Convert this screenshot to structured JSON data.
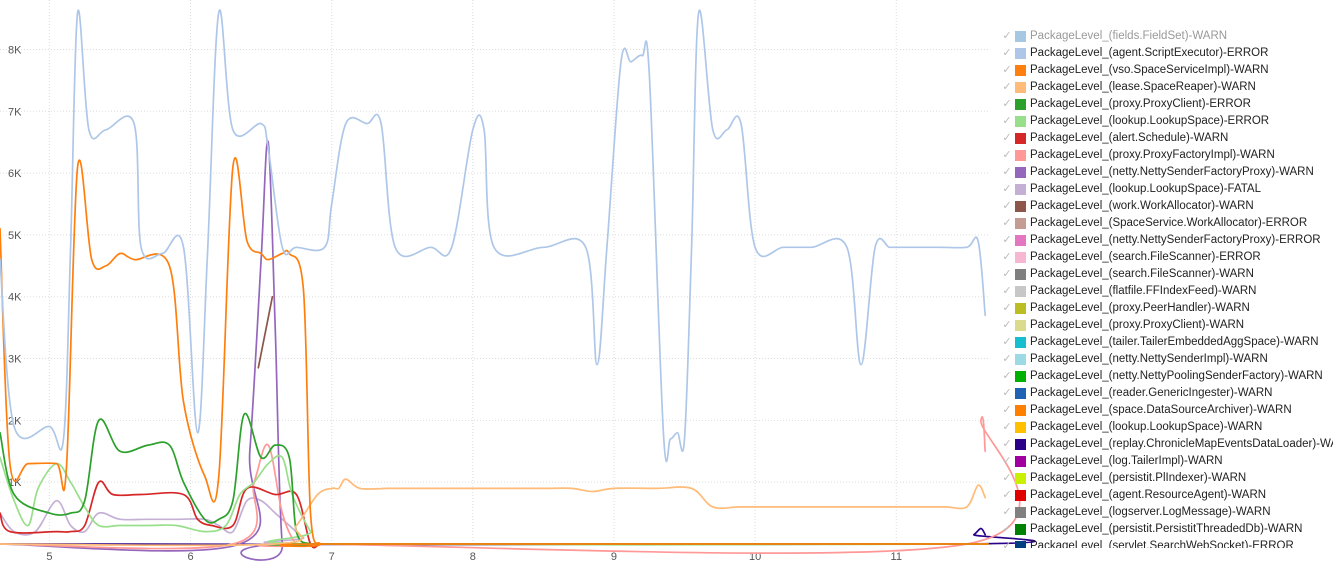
{
  "chart_data": {
    "type": "line",
    "title": "",
    "xlabel": "",
    "ylabel": "",
    "xlim": [
      4.65,
      11.65
    ],
    "ylim": [
      0,
      8800
    ],
    "x_ticks": [
      5,
      6,
      7,
      8,
      9,
      10,
      11
    ],
    "x_tick_labels": [
      "5",
      "6",
      "7",
      "8",
      "9",
      "10",
      "11"
    ],
    "y_ticks": [
      1000,
      2000,
      3000,
      4000,
      5000,
      6000,
      7000,
      8000
    ],
    "y_tick_labels": [
      "1K",
      "2K",
      "3K",
      "4K",
      "5K",
      "6K",
      "7K",
      "8K"
    ],
    "grid": true,
    "legend_position": "right",
    "series": [
      {
        "name": "PackageLevel_(fields.FieldSet)-WARN",
        "color": "#a6c8e2",
        "disabled": true,
        "x": [],
        "y": []
      },
      {
        "name": "PackageLevel_(agent.ScriptExecutor)-ERROR",
        "color": "#aec7e8",
        "x": [
          4.65,
          4.75,
          5.0,
          5.1,
          5.15,
          5.2,
          5.28,
          5.4,
          5.6,
          5.65,
          5.8,
          5.95,
          6.05,
          6.12,
          6.2,
          6.3,
          6.5,
          6.55,
          6.65,
          6.75,
          6.95,
          7.0,
          7.1,
          7.25,
          7.35,
          7.45,
          7.7,
          7.85,
          8.0,
          8.08,
          8.15,
          8.5,
          8.8,
          8.88,
          8.95,
          9.05,
          9.12,
          9.2,
          9.25,
          9.35,
          9.4,
          9.45,
          9.5,
          9.55,
          9.6,
          9.7,
          9.8,
          9.9,
          10.0,
          10.2,
          10.4,
          10.65,
          10.75,
          10.85,
          10.95,
          11.0,
          11.3,
          11.5,
          11.58,
          11.63
        ],
        "y": [
          4600,
          1900,
          1900,
          1700,
          4800,
          8600,
          6700,
          6700,
          6800,
          4800,
          4700,
          4800,
          1800,
          4700,
          8600,
          6700,
          6800,
          6400,
          4800,
          4800,
          4800,
          5500,
          6800,
          6800,
          6800,
          4800,
          4800,
          4800,
          6700,
          6700,
          4800,
          4800,
          4800,
          2900,
          4800,
          7800,
          7800,
          7900,
          7600,
          1800,
          1700,
          1800,
          1700,
          4800,
          8600,
          6700,
          6700,
          6800,
          4800,
          4800,
          4800,
          4800,
          2900,
          4800,
          4800,
          4800,
          4800,
          4800,
          4900,
          3700
        ]
      },
      {
        "name": "PackageLevel_(vso.SpaceServiceImpl)-WARN",
        "color": "#ff7f0e",
        "x": [
          4.65,
          4.72,
          4.85,
          5.05,
          5.12,
          5.2,
          5.3,
          5.4,
          5.5,
          5.6,
          5.85,
          5.95,
          6.1,
          6.2,
          6.3,
          6.4,
          6.5,
          6.55,
          6.65,
          6.7,
          6.8,
          6.85,
          6.92,
          7.0,
          11.65
        ],
        "y": [
          5100,
          1300,
          1300,
          1300,
          1200,
          6100,
          4600,
          4500,
          4700,
          4600,
          4500,
          2300,
          1100,
          1100,
          6100,
          4900,
          4700,
          4600,
          4700,
          4700,
          4100,
          500,
          0,
          0,
          0
        ]
      },
      {
        "name": "PackageLevel_(lease.SpaceReaper)-WARN",
        "color": "#ffbb78",
        "x": [
          4.65,
          6.6,
          6.75,
          6.9,
          7.0,
          7.05,
          7.1,
          7.2,
          7.4,
          7.6,
          7.8,
          8.0,
          8.2,
          8.5,
          8.7,
          8.85,
          9.0,
          9.3,
          9.55,
          9.7,
          9.9,
          10.2,
          10.5,
          10.8,
          11.0,
          11.2,
          11.35,
          11.5,
          11.58,
          11.63
        ],
        "y": [
          0,
          0,
          300,
          800,
          900,
          900,
          1050,
          900,
          900,
          900,
          900,
          900,
          900,
          900,
          900,
          850,
          900,
          900,
          900,
          600,
          600,
          600,
          600,
          600,
          600,
          600,
          600,
          600,
          950,
          750
        ]
      },
      {
        "name": "PackageLevel_(proxy.ProxyClient)-ERROR",
        "color": "#2ca02c",
        "x": [
          4.65,
          4.75,
          5.0,
          5.15,
          5.25,
          5.35,
          5.5,
          5.7,
          5.85,
          5.95,
          6.1,
          6.2,
          6.3,
          6.38,
          6.5,
          6.6,
          6.7,
          6.75,
          6.85,
          6.92,
          11.65
        ],
        "y": [
          1800,
          800,
          500,
          500,
          700,
          2000,
          1500,
          1600,
          1600,
          1000,
          400,
          400,
          700,
          2100,
          1400,
          1600,
          1400,
          200,
          0,
          0,
          0
        ]
      },
      {
        "name": "PackageLevel_(lookup.LookupSpace)-ERROR",
        "color": "#98df8a",
        "x": [
          4.65,
          4.75,
          4.85,
          4.92,
          5.05,
          5.15,
          5.25,
          5.35,
          5.5,
          5.7,
          5.9,
          6.1,
          6.25,
          6.35,
          6.45,
          6.55,
          6.65,
          6.72,
          6.85,
          6.92,
          11.65
        ],
        "y": [
          1400,
          700,
          300,
          900,
          1300,
          1000,
          600,
          300,
          300,
          300,
          300,
          200,
          300,
          800,
          1000,
          1300,
          1400,
          800,
          200,
          0,
          0
        ]
      },
      {
        "name": "PackageLevel_(alert.Schedule)-WARN",
        "color": "#d62728",
        "x": [
          4.65,
          4.72,
          5.05,
          5.15,
          5.25,
          5.35,
          5.45,
          5.65,
          5.95,
          6.05,
          6.15,
          6.3,
          6.4,
          6.6,
          6.75,
          6.85,
          6.92,
          7.0,
          10.0,
          11.65
        ],
        "y": [
          500,
          200,
          200,
          200,
          300,
          1000,
          800,
          800,
          800,
          400,
          300,
          300,
          900,
          800,
          800,
          0,
          0,
          0,
          0,
          0
        ]
      },
      {
        "name": "PackageLevel_(proxy.ProxyFactoryImpl)-WARN",
        "color": "#ff9896",
        "x": [
          4.65,
          6.3,
          6.45,
          6.55,
          6.65,
          6.75,
          6.85,
          11.5,
          11.6,
          11.63
        ],
        "y": [
          0,
          0,
          1000,
          1600,
          500,
          0,
          0,
          0,
          2000,
          1500
        ]
      },
      {
        "name": "PackageLevel_(netty.NettySenderFactoryProxy)-WARN",
        "color": "#9467bd",
        "x": [
          4.65,
          6.35,
          6.42,
          6.5,
          6.55,
          6.6,
          6.65,
          6.75,
          11.65
        ],
        "y": [
          0,
          0,
          1500,
          4600,
          6500,
          3500,
          0,
          0,
          0
        ]
      },
      {
        "name": "PackageLevel_(lookup.LookupSpace)-FATAL",
        "color": "#c5b0d5",
        "x": [
          4.65,
          4.75,
          4.9,
          5.05,
          5.15,
          5.25,
          5.35,
          5.5,
          5.7,
          5.9,
          6.1,
          6.2,
          6.3,
          6.4,
          6.5,
          6.6,
          6.7,
          6.8,
          6.9,
          11.65
        ],
        "y": [
          500,
          200,
          200,
          700,
          300,
          200,
          500,
          400,
          400,
          400,
          400,
          300,
          200,
          700,
          700,
          500,
          300,
          100,
          0,
          0
        ]
      },
      {
        "name": "PackageLevel_(work.WorkAllocator)-WARN",
        "color": "#8c564b",
        "x": [
          6.48,
          6.58
        ],
        "y": [
          2850,
          4000
        ]
      },
      {
        "name": "PackageLevel_(SpaceService.WorkAllocator)-ERROR",
        "color": "#c49c94",
        "x": [],
        "y": []
      },
      {
        "name": "PackageLevel_(netty.NettySenderFactoryProxy)-ERROR",
        "color": "#e377c2",
        "x": [],
        "y": []
      },
      {
        "name": "PackageLevel_(search.FileScanner)-ERROR",
        "color": "#f7b6d2",
        "x": [],
        "y": []
      },
      {
        "name": "PackageLevel_(search.FileScanner)-WARN",
        "color": "#7f7f7f",
        "x": [],
        "y": []
      },
      {
        "name": "PackageLevel_(flatfile.FFIndexFeed)-WARN",
        "color": "#c7c7c7",
        "x": [],
        "y": []
      },
      {
        "name": "PackageLevel_(proxy.PeerHandler)-WARN",
        "color": "#bcbd22",
        "x": [],
        "y": []
      },
      {
        "name": "PackageLevel_(proxy.ProxyClient)-WARN",
        "color": "#dbdb8d",
        "x": [],
        "y": []
      },
      {
        "name": "PackageLevel_(tailer.TailerEmbeddedAggSpace)-WARN",
        "color": "#17becf",
        "x": [],
        "y": []
      },
      {
        "name": "PackageLevel_(netty.NettySenderImpl)-WARN",
        "color": "#9edae5",
        "x": [],
        "y": []
      },
      {
        "name": "PackageLevel_(netty.NettyPoolingSenderFactory)-WARN",
        "color": "#00b000",
        "x": [],
        "y": []
      },
      {
        "name": "PackageLevel_(reader.GenericIngester)-WARN",
        "color": "#1f62b4",
        "x": [],
        "y": []
      },
      {
        "name": "PackageLevel_(space.DataSourceArchiver)-WARN",
        "color": "#ff8000",
        "x": [],
        "y": []
      },
      {
        "name": "PackageLevel_(lookup.LookupSpace)-WARN",
        "color": "#ffc000",
        "x": [],
        "y": []
      },
      {
        "name": "PackageLevel_(replay.ChronicleMapEventsDataLoader)-WARN",
        "color": "#2a0088",
        "x": [
          4.65,
          11.45,
          11.55,
          11.6,
          11.63
        ],
        "y": [
          0,
          0,
          150,
          250,
          150
        ]
      },
      {
        "name": "PackageLevel_(log.TailerImpl)-WARN",
        "color": "#a000a0",
        "x": [],
        "y": []
      },
      {
        "name": "PackageLevel_(persistit.PlIndexer)-WARN",
        "color": "#c8f000",
        "x": [],
        "y": []
      },
      {
        "name": "PackageLevel_(agent.ResourceAgent)-WARN",
        "color": "#e00000",
        "x": [],
        "y": []
      },
      {
        "name": "PackageLevel_(logserver.LogMessage)-WARN",
        "color": "#808080",
        "x": [],
        "y": []
      },
      {
        "name": "PackageLevel_(persistit.PersistitThreadedDb)-WARN",
        "color": "#008000",
        "x": [],
        "y": []
      },
      {
        "name": "PackageLevel_(servlet.SearchWebSocket)-ERROR",
        "color": "#004080",
        "x": [],
        "y": []
      }
    ]
  }
}
